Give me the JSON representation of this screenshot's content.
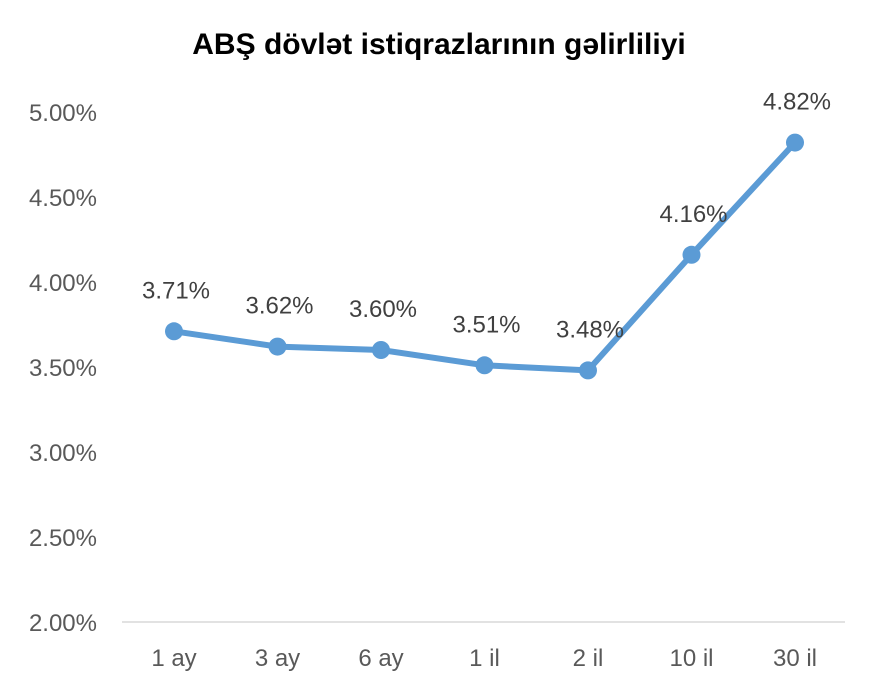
{
  "chart_data": {
    "type": "line",
    "title": "ABŞ dövlət istiqrazlarının gəlirliliyi",
    "xlabel": "",
    "ylabel": "",
    "categories": [
      "1 ay",
      "3 ay",
      "6 ay",
      "1 il",
      "2 il",
      "10 il",
      "30 il"
    ],
    "series": [
      {
        "values": [
          3.71,
          3.62,
          3.6,
          3.51,
          3.48,
          4.16,
          4.82
        ],
        "data_labels": [
          "3.71%",
          "3.62%",
          "3.60%",
          "3.51%",
          "3.48%",
          "4.16%",
          "4.82%"
        ],
        "color": "#5B9BD5"
      }
    ],
    "ylim": [
      2.0,
      5.0
    ],
    "yticks": [
      2.0,
      2.5,
      3.0,
      3.5,
      4.0,
      4.5,
      5.0
    ],
    "ytick_labels": [
      "2.00%",
      "2.50%",
      "3.00%",
      "3.50%",
      "4.00%",
      "4.50%",
      "5.00%"
    ],
    "grid": false,
    "legend": "none"
  }
}
